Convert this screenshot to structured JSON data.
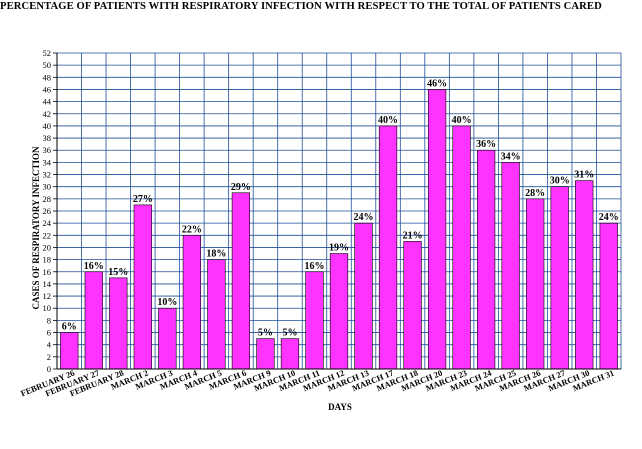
{
  "chart_data": {
    "type": "bar",
    "title": "PERCENTAGE OF PATIENTS WITH RESPIRATORY INFECTION WITH RESPECT TO THE TOTAL OF PATIENTS CARED",
    "xlabel": "DAYS",
    "ylabel": "CASES OF RESPIRATORY INFECTION",
    "ylim": [
      0,
      52
    ],
    "ytick_step": 2,
    "grid": true,
    "bar_color": "#ff33ff",
    "grid_color": "#1f4e9a",
    "categories": [
      "FEBRUARY 26",
      "FEBRUARY 27",
      "FEBRUARY 28",
      "MARCH 2",
      "MARCH 3",
      "MARCH 4",
      "MARCH 5",
      "MARCH 6",
      "MARCH 9",
      "MARCH 10",
      "MARCH 11",
      "MARCH 12",
      "MARCH 13",
      "MARCH 17",
      "MARCH 18",
      "MARCH 20",
      "MARCH 23",
      "MARCH 24",
      "MARCH 25",
      "MARCH 26",
      "MARCH 27",
      "MARCH 30",
      "MARCH 31"
    ],
    "values": [
      6,
      16,
      15,
      27,
      10,
      22,
      18,
      29,
      5,
      5,
      16,
      19,
      24,
      40,
      21,
      46,
      40,
      36,
      34,
      28,
      30,
      31,
      24
    ],
    "data_labels": [
      "6%",
      "16%",
      "15%",
      "27%",
      "10%",
      "22%",
      "18%",
      "29%",
      "5%",
      "5%",
      "16%",
      "19%",
      "24%",
      "40%",
      "21%",
      "46%",
      "40%",
      "36%",
      "34%",
      "28%",
      "30%",
      "31%",
      "24%"
    ]
  }
}
